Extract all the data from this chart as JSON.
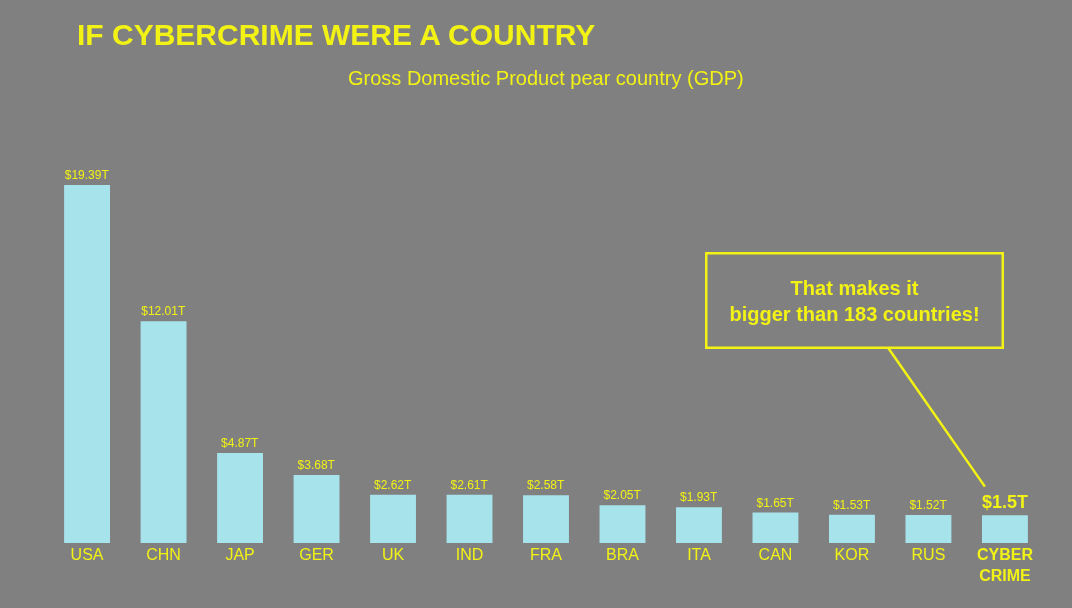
{
  "chart_data": {
    "type": "bar",
    "title": "IF CYBERCRIME WERE A COUNTRY",
    "subtitle": "Gross Domestic Product pear country (GDP)",
    "categories": [
      "USA",
      "CHN",
      "JAP",
      "GER",
      "UK",
      "IND",
      "FRA",
      "BRA",
      "ITA",
      "CAN",
      "KOR",
      "RUS",
      "CYBER CRIME"
    ],
    "values": [
      19.39,
      12.01,
      4.87,
      3.68,
      2.62,
      2.61,
      2.58,
      2.05,
      1.93,
      1.65,
      1.53,
      1.52,
      1.5
    ],
    "value_labels": [
      "$19.39T",
      "$12.01T",
      "$4.87T",
      "$3.68T",
      "$2.62T",
      "$2.61T",
      "$2.58T",
      "$2.05T",
      "$1.93T",
      "$1.65T",
      "$1.53T",
      "$1.52T",
      "$1.5T"
    ],
    "color": "#a6e3ea",
    "annotations": [
      "That makes it bigger than 183 countries!"
    ],
    "grid": false,
    "legend": false
  }
}
